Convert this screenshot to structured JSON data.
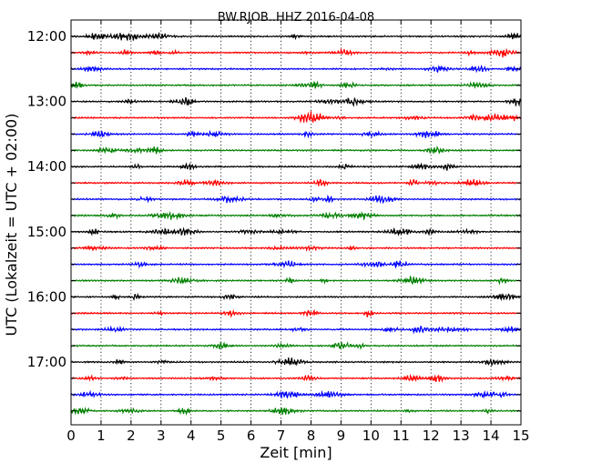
{
  "chart_data": {
    "type": "line",
    "title": "BW.RJOB..HHZ 2016-04-08",
    "xlabel": "Zeit  [min]",
    "ylabel": "UTC (Lokalzeit = UTC + 02:00)",
    "xlim": [
      0,
      15
    ],
    "x_ticks": [
      "0",
      "1",
      "2",
      "3",
      "4",
      "5",
      "6",
      "7",
      "8",
      "9",
      "10",
      "11",
      "12",
      "13",
      "14",
      "15"
    ],
    "y_ticks": [
      "12:00",
      "13:00",
      "14:00",
      "15:00",
      "16:00",
      "17:00"
    ],
    "trace_minutes": 15,
    "trace_start_times": [
      "12:00",
      "12:15",
      "12:30",
      "12:45",
      "13:00",
      "13:15",
      "13:30",
      "13:45",
      "14:00",
      "14:15",
      "14:30",
      "14:45",
      "15:00",
      "15:15",
      "15:30",
      "15:45",
      "16:00",
      "16:15",
      "16:30",
      "16:45",
      "17:00",
      "17:15",
      "17:30",
      "17:45"
    ],
    "color_cycle": [
      "#000000",
      "#ff0000",
      "#0000ff",
      "#008000"
    ],
    "grid": "vertical dotted at each minute"
  }
}
